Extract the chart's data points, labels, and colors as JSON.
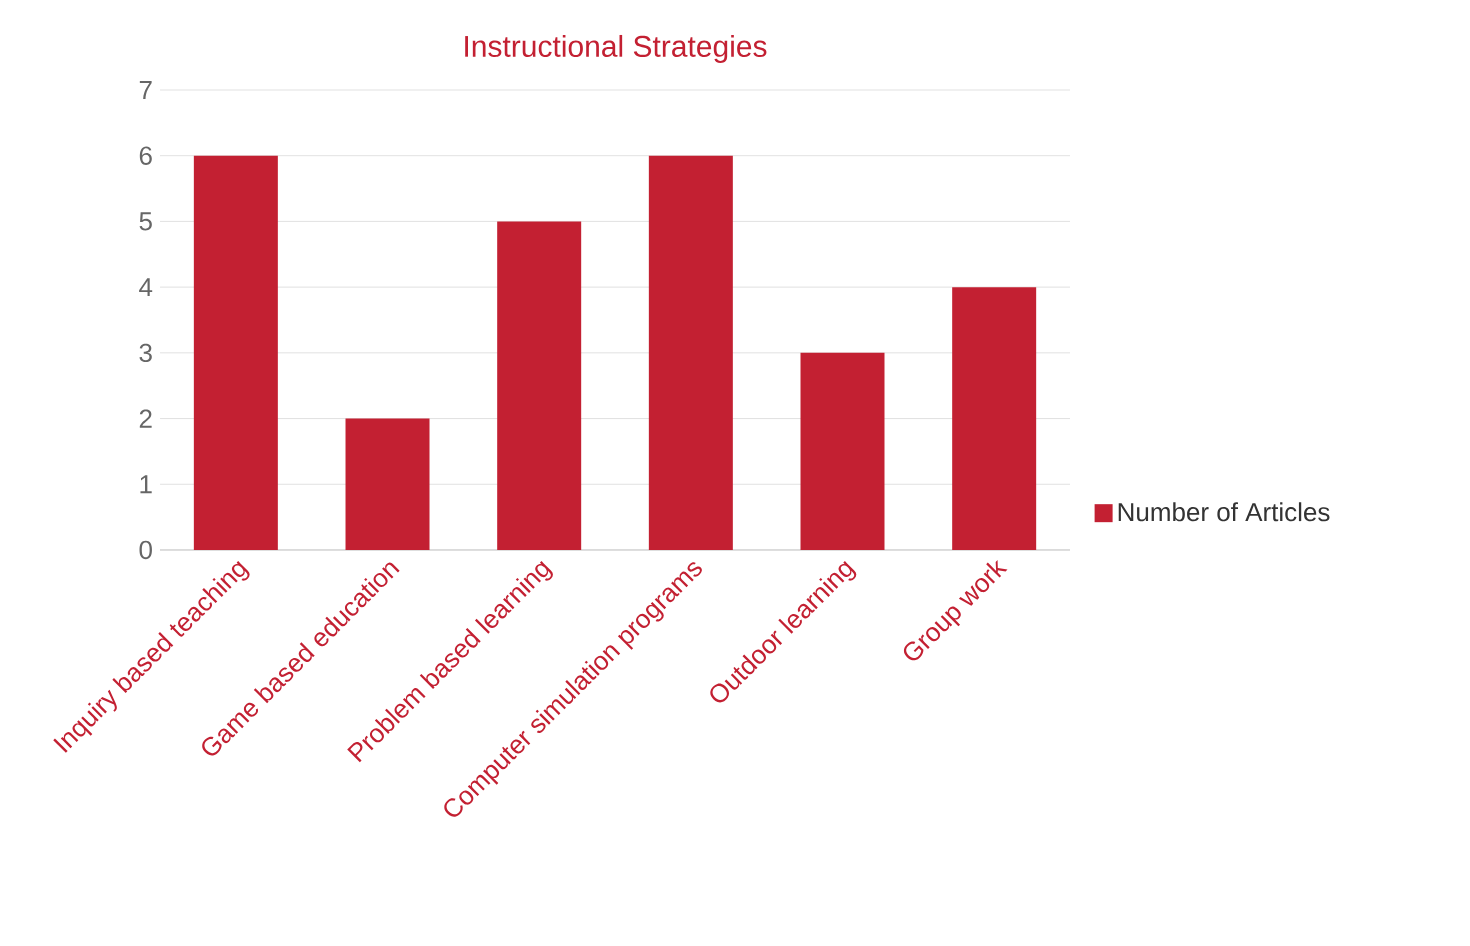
{
  "chart_data": {
    "type": "bar",
    "title": "Instructional Strategies",
    "categories": [
      "Inquiry based teaching",
      "Game based education",
      "Problem based learning",
      "Computer simulation programs",
      "Outdoor learning",
      "Group work"
    ],
    "series": [
      {
        "name": "Number of Articles",
        "color": "#c32032",
        "values": [
          6,
          2,
          5,
          6,
          3,
          4
        ]
      }
    ],
    "ylim": [
      0,
      7
    ],
    "yticks": [
      0,
      1,
      2,
      3,
      4,
      5,
      6,
      7
    ],
    "grid": "y",
    "legend": "right"
  }
}
